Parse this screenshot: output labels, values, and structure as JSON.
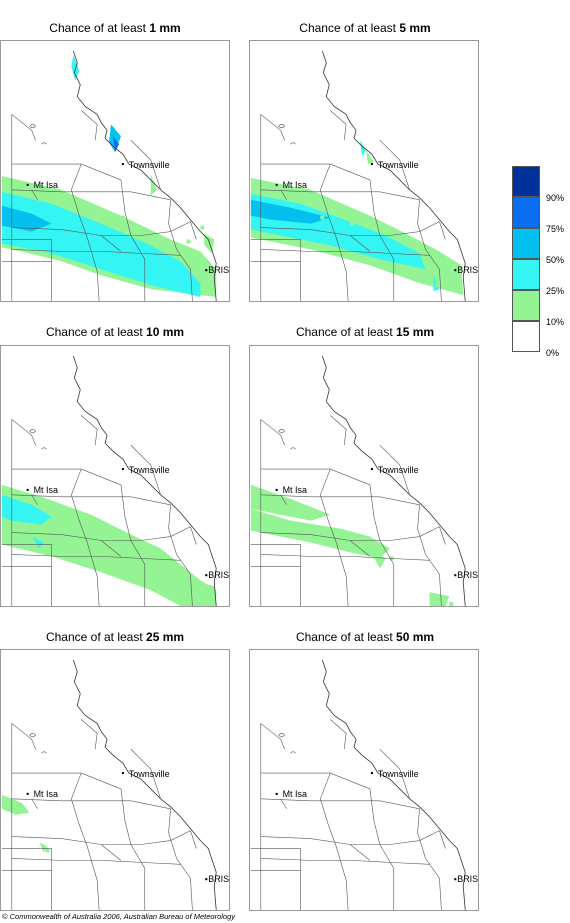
{
  "panels": [
    {
      "prefix": "Chance of at least ",
      "amount": "1 mm"
    },
    {
      "prefix": "Chance of at least ",
      "amount": "5 mm"
    },
    {
      "prefix": "Chance of at least ",
      "amount": "10 mm"
    },
    {
      "prefix": "Chance of at least ",
      "amount": "15 mm"
    },
    {
      "prefix": "Chance of at least ",
      "amount": "25 mm"
    },
    {
      "prefix": "Chance of at least ",
      "amount": "50 mm"
    }
  ],
  "places": {
    "townsville": "Townsville",
    "mt_isa": "Mt Isa",
    "brisbane": "BRIS"
  },
  "legend": {
    "labels": [
      "90%",
      "75%",
      "50%",
      "25%",
      "10%",
      "0%"
    ],
    "colors": [
      "#00309a",
      "#0a6ef0",
      "#04c0ee",
      "#34f4f4",
      "#94f494",
      "#ffffff"
    ]
  },
  "copyright": "© Commonwealth of Australia 2006, Australian Bureau of Meteorology"
}
